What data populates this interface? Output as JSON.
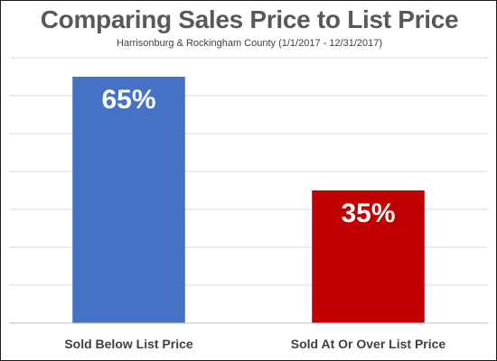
{
  "chart_data": {
    "type": "bar",
    "title": "Comparing Sales Price to List Price",
    "subtitle": "Harrisonburg & Rockingham County (1/1/2017 - 12/31/2017)",
    "categories": [
      "Sold Below List Price",
      "Sold At Or Over List Price"
    ],
    "values": [
      65,
      35
    ],
    "value_labels": [
      "65%",
      "35%"
    ],
    "colors": [
      "#4472C4",
      "#C00000"
    ],
    "xlabel": "",
    "ylabel": "",
    "ylim": [
      0,
      70
    ],
    "grid": true,
    "legend": "none"
  }
}
